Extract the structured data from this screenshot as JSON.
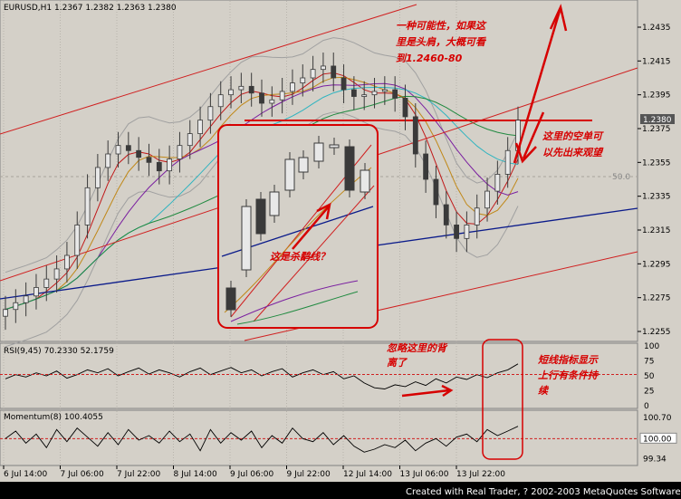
{
  "chart_data": [
    {
      "type": "candlestick",
      "title": "EURUSD,H1",
      "ohlc_text": "1.2367 1.2382 1.2363 1.2380",
      "last_price": "1.2380",
      "ylim": [
        1.225,
        1.245
      ],
      "y_ticks": [
        "1.2435",
        "1.2415",
        "1.2395",
        "1.2375",
        "1.2355",
        "1.2335",
        "1.2315",
        "1.2295",
        "1.2275",
        "1.2255"
      ],
      "marker_label": "50.0",
      "x_ticks": [
        "6 Jul 14:00",
        "7 Jul 06:00",
        "7 Jul 22:00",
        "8 Jul 14:00",
        "9 Jul 06:00",
        "9 Jul 22:00",
        "12 Jul 14:00",
        "13 Jul 06:00",
        "13 Jul 22:00"
      ],
      "close_series": [
        1.2268,
        1.2272,
        1.2276,
        1.2281,
        1.2286,
        1.2292,
        1.23,
        1.2318,
        1.234,
        1.2352,
        1.236,
        1.2365,
        1.2362,
        1.2358,
        1.2355,
        1.235,
        1.2357,
        1.2365,
        1.2372,
        1.238,
        1.2388,
        1.2395,
        1.2398,
        1.24,
        1.2396,
        1.239,
        1.2392,
        1.2397,
        1.2402,
        1.2405,
        1.241,
        1.2412,
        1.2405,
        1.2398,
        1.2394,
        1.2395,
        1.2397,
        1.2398,
        1.2393,
        1.2382,
        1.236,
        1.2345,
        1.233,
        1.2318,
        1.231,
        1.2318,
        1.2328,
        1.2338,
        1.2348,
        1.2362,
        1.238
      ]
    },
    {
      "type": "line",
      "title": "RSI(9,45)",
      "values_text": "70.2330  52.1759",
      "y_ticks": [
        "100",
        "75",
        "50",
        "25",
        "0"
      ],
      "ylim": [
        0,
        100
      ],
      "rsi": [
        45,
        52,
        48,
        55,
        50,
        58,
        46,
        52,
        60,
        55,
        62,
        50,
        57,
        63,
        53,
        60,
        55,
        48,
        57,
        63,
        52,
        58,
        64,
        55,
        60,
        50,
        57,
        62,
        48,
        55,
        60,
        52,
        57,
        45,
        50,
        38,
        30,
        28,
        35,
        32,
        40,
        34,
        45,
        38,
        48,
        44,
        52,
        47,
        55,
        60,
        70
      ],
      "signal": 52.18
    },
    {
      "type": "line",
      "title": "Momentum(8)",
      "values_text": "100.4055",
      "y_ticks": [
        "100.70",
        "100.00",
        "99.34"
      ],
      "ylim": [
        99.2,
        100.85
      ],
      "momentum": [
        100.0,
        100.25,
        99.85,
        100.15,
        99.7,
        100.3,
        99.9,
        100.35,
        100.05,
        99.75,
        100.2,
        99.8,
        100.3,
        99.95,
        100.1,
        99.85,
        100.25,
        99.9,
        100.15,
        99.6,
        100.3,
        99.85,
        100.2,
        99.95,
        100.25,
        99.7,
        100.1,
        99.85,
        100.35,
        100.0,
        99.9,
        100.2,
        99.8,
        100.1,
        99.75,
        99.55,
        99.65,
        99.8,
        99.7,
        99.95,
        99.6,
        99.85,
        100.0,
        99.75,
        100.05,
        100.15,
        99.9,
        100.3,
        100.1,
        100.25,
        100.41
      ]
    }
  ],
  "annotations": {
    "head_shoulders_note": [
      "一种可能性，如果这",
      "里是头肩，大概可看",
      "到1.2460-80"
    ],
    "short_note": [
      "这里的空单可",
      "以先出来观望"
    ],
    "wedge_question": "这是杀鹬线？",
    "rsi_divergence_note": [
      "忽略这里的背",
      "离了"
    ],
    "short_indicator_note": [
      "短线指标显示",
      "上行有条件持",
      "续"
    ]
  },
  "colors": {
    "background": "#d4d0c8",
    "candle_body": "#3a3a3a",
    "annotation_red": "#d60000",
    "trend_blue": "#0a1a8a"
  },
  "footer": {
    "credit": "Created with Real Trader, ? 2002-2003 MetaQuotes Software Corp."
  }
}
